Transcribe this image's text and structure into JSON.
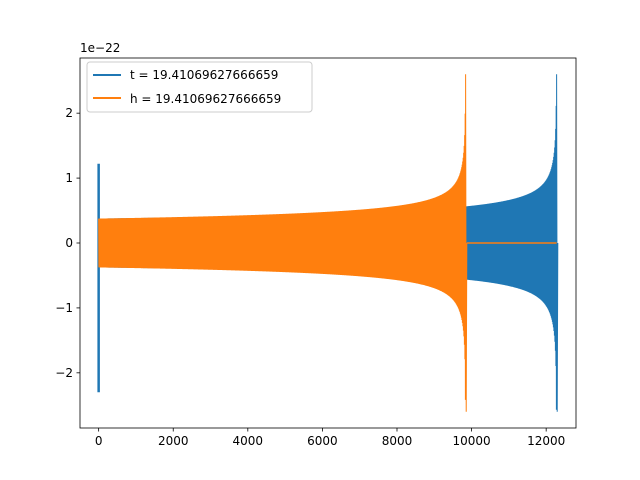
{
  "chart_data": {
    "type": "line",
    "offset_text": "1e−22",
    "xlim": [
      -500,
      12800
    ],
    "ylim": [
      -2.85,
      2.85
    ],
    "x_ticks": [
      0,
      2000,
      4000,
      6000,
      8000,
      10000,
      12000
    ],
    "x_tick_labels": [
      "0",
      "2000",
      "4000",
      "6000",
      "8000",
      "10000",
      "12000"
    ],
    "y_ticks": [
      -2,
      -1,
      0,
      1,
      2
    ],
    "y_tick_labels": [
      "−2",
      "−1",
      "0",
      "1",
      "2"
    ],
    "grid": false,
    "legend_position": "top-left",
    "series": [
      {
        "name": "t = 19.41069627666659",
        "color": "#1f77b4",
        "x_start": 0,
        "x_end": 12280,
        "initial_spike": {
          "x": 0,
          "max": 1.22,
          "min": -2.3
        },
        "baseline_amplitude": 0.38,
        "merger_x": 12280,
        "peak_amplitude": 2.6,
        "post_merger_value": 0
      },
      {
        "name": "h = 19.41069627666659",
        "color": "#ff7f0e",
        "x_start": 0,
        "x_end": 12280,
        "initial_spike": null,
        "baseline_amplitude": 0.38,
        "merger_x": 9840,
        "peak_amplitude": 2.6,
        "post_merger_value": 0
      }
    ]
  }
}
